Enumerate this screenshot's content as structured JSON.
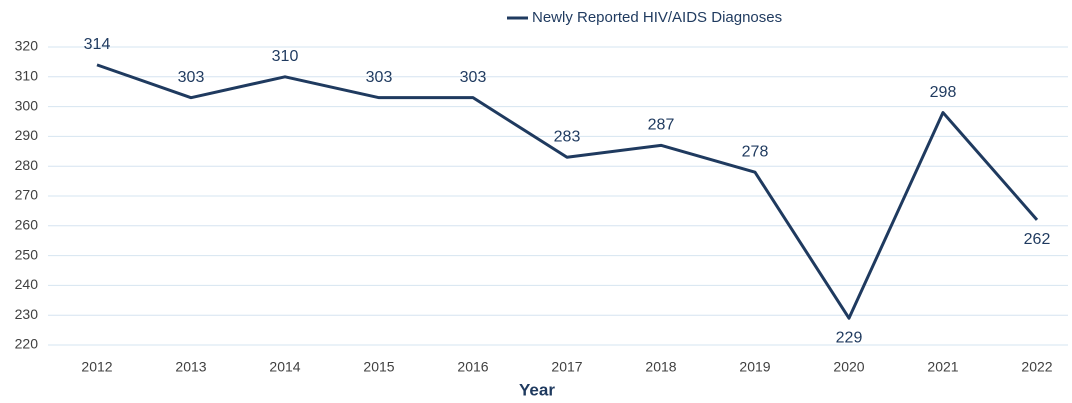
{
  "chart_data": {
    "type": "line",
    "x_label": "Year",
    "categories": [
      "2012",
      "2013",
      "2014",
      "2015",
      "2016",
      "2017",
      "2018",
      "2019",
      "2020",
      "2021",
      "2022"
    ],
    "series": [
      {
        "name": "Newly Reported HIV/AIDS Diagnoses",
        "color": "#1f3a5f",
        "values": [
          314,
          303,
          310,
          303,
          303,
          283,
          287,
          278,
          229,
          298,
          262
        ]
      }
    ],
    "ylim": [
      220,
      320
    ],
    "yticks": [
      220,
      230,
      240,
      250,
      260,
      270,
      280,
      290,
      300,
      310,
      320
    ],
    "grid": true,
    "legend": "top"
  }
}
